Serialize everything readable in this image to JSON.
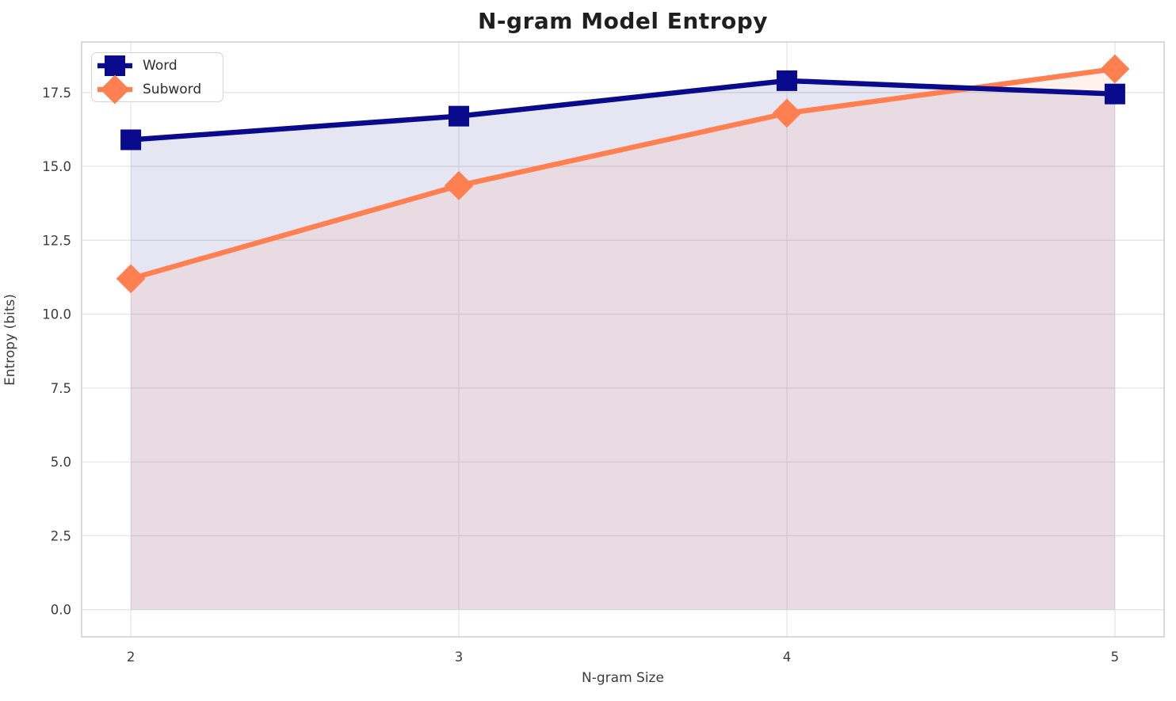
{
  "title": "N-gram Model Entropy",
  "chart_data": {
    "type": "line",
    "title": "N-gram Model Entropy",
    "xlabel": "N-gram Size",
    "ylabel": "Entropy (bits)",
    "x": [
      2,
      3,
      4,
      5
    ],
    "series": [
      {
        "name": "Word",
        "values": [
          15.9,
          16.7,
          17.9,
          17.45
        ],
        "color": "#0a0a8c",
        "marker": "square"
      },
      {
        "name": "Subword",
        "values": [
          11.2,
          14.35,
          16.8,
          18.3
        ],
        "color": "#ff7f50",
        "marker": "diamond"
      }
    ],
    "xticks": [
      2,
      3,
      4,
      5
    ],
    "xtick_labels": [
      "2",
      "3",
      "4",
      "5"
    ],
    "ytick_values": [
      0,
      2.5,
      5,
      7.5,
      10,
      12.5,
      15,
      17.5
    ],
    "ytick_labels": [
      "0.0",
      "2.5",
      "5.0",
      "7.5",
      "10.0",
      "12.5",
      "15.0",
      "17.5"
    ],
    "xlim": [
      1.85,
      5.15
    ],
    "ylim": [
      -0.92,
      19.21
    ],
    "grid": true,
    "fill_alpha": 0.1,
    "fill_to_value": 0,
    "legend_position": "upper left",
    "legend_items": [
      "Word",
      "Subword"
    ]
  },
  "style": {
    "grid_color": "#e5e5e5",
    "spine_color": "#cdcdcd",
    "tick_color": "#3d3d3d",
    "title_color": "#1f1f1f",
    "background": "#ffffff"
  }
}
